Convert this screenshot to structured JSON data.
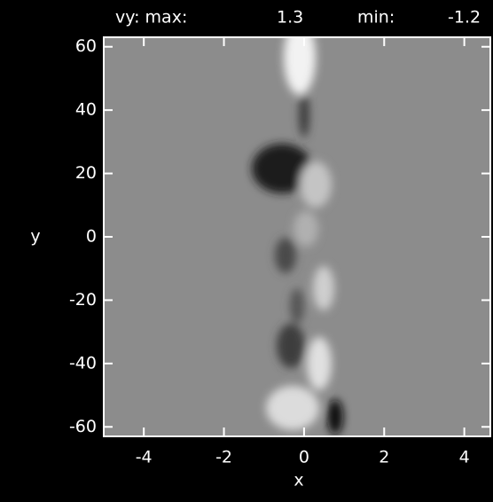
{
  "chart_data": {
    "type": "image",
    "title_label": "vy: max:",
    "max": 1.3,
    "min_label": "min:",
    "min": -1.2,
    "xlabel": "x",
    "ylabel": "y",
    "xlim": [
      -5,
      4.65
    ],
    "ylim": [
      -63,
      63
    ],
    "xticks": [
      -4,
      -2,
      0,
      2,
      4
    ],
    "yticks": [
      -60,
      -40,
      -20,
      0,
      20,
      40,
      60
    ]
  }
}
